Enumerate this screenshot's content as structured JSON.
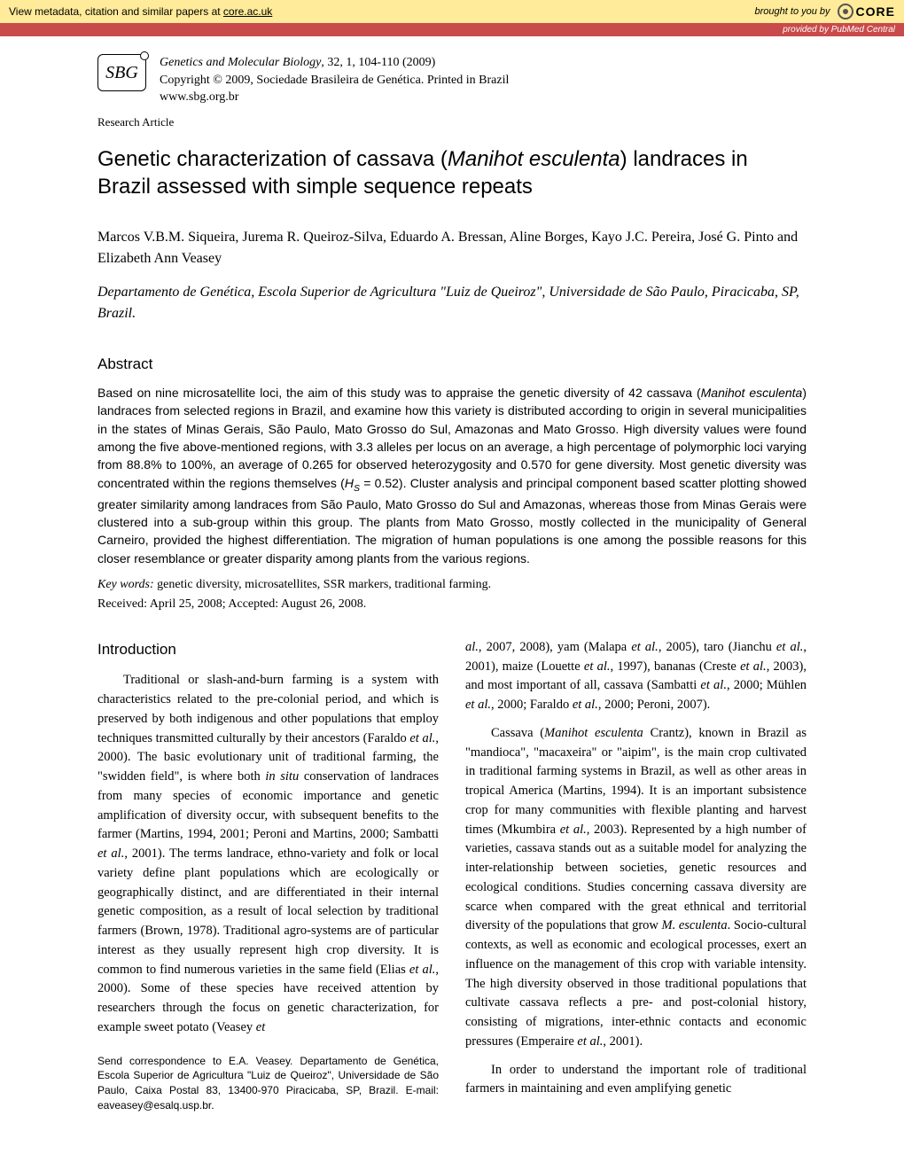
{
  "banner": {
    "metadata_text": "View metadata, citation and similar papers at ",
    "metadata_link": "core.ac.uk",
    "brought_by": "brought to you by",
    "core_name": "CORE",
    "provider": "provided by PubMed Central"
  },
  "journal": {
    "name": "Genetics and Molecular Biology",
    "citation": ", 32, 1, 104-110 (2009)",
    "copyright": "Copyright © 2009, Sociedade Brasileira de Genética. Printed in Brazil",
    "url": "www.sbg.org.br",
    "logo_text": "SBG"
  },
  "article_type": "Research Article",
  "title_parts": {
    "pre": "Genetic characterization of cassava (",
    "species": "Manihot esculenta",
    "post": ") landraces in Brazil assessed with simple sequence repeats"
  },
  "authors": "Marcos V.B.M. Siqueira, Jurema R. Queiroz-Silva, Eduardo A. Bressan, Aline Borges, Kayo J.C. Pereira, José G. Pinto and Elizabeth Ann Veasey",
  "affiliation": "Departamento de Genética, Escola Superior de Agricultura \"Luiz de Queiroz\", Universidade de São Paulo, Piracicaba, SP, Brazil.",
  "abstract_heading": "Abstract",
  "abstract_parts": {
    "p1": "Based on nine microsatellite loci, the aim of this study was to appraise the genetic diversity of 42 cassava (",
    "p1_species": "Manihot esculenta",
    "p2": ") landraces from selected regions in Brazil, and examine how this variety is distributed according to origin in several municipalities in the states of Minas Gerais, São Paulo, Mato Grosso do Sul, Amazonas and Mato Grosso. High diversity values were found among the five above-mentioned regions, with 3.3 alleles per locus on an average, a high percentage of polymorphic loci varying from 88.8% to 100%, an average of 0.265 for observed heterozygosity and 0.570 for gene diversity. Most genetic diversity was concentrated within the regions themselves (",
    "p2_hs": "H",
    "p2_sub": "S",
    "p2_val": " = 0.52). Cluster analysis and principal component based scatter plotting showed greater similarity among landraces from São Paulo, Mato Grosso do Sul and Amazonas, whereas those from Minas Gerais were clustered into a sub-group within this group. The plants from Mato Grosso, mostly collected in the municipality of General Carneiro, provided the highest differentiation. The migration of human populations is one among the possible reasons for this closer resemblance or greater disparity among plants from the various regions."
  },
  "keywords_label": "Key words:",
  "keywords_text": " genetic diversity, microsatellites, SSR markers, traditional farming.",
  "received": "Received: April 25, 2008; Accepted: August 26, 2008.",
  "intro_heading": "Introduction",
  "intro_left": {
    "p1a": "Traditional or slash-and-burn farming is a system with characteristics related to the pre-colonial period, and which is preserved by both indigenous and other populations that employ techniques transmitted culturally by their ancestors (Faraldo ",
    "p1_etal1": "et al.",
    "p1b": ", 2000). The basic evolutionary unit of traditional farming, the \"swidden field\", is where both ",
    "p1_insitu": "in situ",
    "p1c": " conservation of landraces from many species of economic importance and genetic amplification of diversity occur, with subsequent benefits to the farmer (Martins, 1994, 2001; Peroni and Martins, 2000; Sambatti ",
    "p1_etal2": "et al.",
    "p1d": ", 2001). The terms landrace, ethno-variety and folk or local variety define plant populations which are ecologically or geographically distinct, and are differentiated in their internal genetic composition, as a result of local selection by traditional farmers (Brown, 1978). Traditional agro-systems are of particular interest as they usually represent high crop diversity. It is common to find numerous varieties in the same field (Elias ",
    "p1_etal3": "et al.",
    "p1e": ", 2000). Some of these species have received attention by researchers through the focus on genetic characterization, for example sweet potato (Veasey ",
    "p1_etal4": "et"
  },
  "correspondence": "Send correspondence to E.A. Veasey. Departamento de Genética, Escola Superior de Agricultura \"Luiz de Queiroz\", Universidade de São Paulo, Caixa Postal 83, 13400-970 Piracicaba, SP, Brazil. E-mail: eaveasey@esalq.usp.br.",
  "intro_right": {
    "p1a": "al.",
    "p1b": ", 2007, 2008), yam (Malapa ",
    "p1c": "et al.",
    "p1d": ", 2005), taro (Jianchu ",
    "p1e": "et al.",
    "p1f": ", 2001), maize (Louette ",
    "p1g": "et al.",
    "p1h": ", 1997), bananas (Creste ",
    "p1i": "et al.",
    "p1j": ", 2003), and most important of all, cassava (Sambatti ",
    "p1k": "et al.",
    "p1l": ", 2000; Mühlen ",
    "p1m": "et al.",
    "p1n": ", 2000; Faraldo ",
    "p1o": "et al.",
    "p1p": ", 2000; Peroni, 2007).",
    "p2a": "Cassava (",
    "p2_species": "Manihot esculenta",
    "p2b": " Crantz), known in Brazil as \"mandioca\", \"macaxeira\" or \"aipim\", is the main crop cultivated in traditional farming systems in Brazil, as well as other areas in tropical America (Martins, 1994). It is an important subsistence crop for many communities with flexible planting and harvest times (Mkumbira ",
    "p2_etal": "et al.",
    "p2c": ", 2003). Represented by a high number of varieties, cassava stands out as a suitable model for analyzing the inter-relationship between societies, genetic resources and ecological conditions. Studies concerning cassava diversity are scarce when compared with the great ethnical and territorial diversity of the populations that grow ",
    "p2_mesc": "M. esculenta",
    "p2d": ". Socio-cultural contexts, as well as economic and ecological processes, exert an influence on the management of this crop with variable intensity. The high diversity observed in those traditional populations that cultivate cassava reflects a pre- and post-colonial history, consisting of migrations, inter-ethnic contacts and economic pressures (Emperaire ",
    "p2_etal2": "et al.",
    "p2e": ", 2001).",
    "p3": "In order to understand the important role of traditional farmers in maintaining and even amplifying genetic"
  }
}
